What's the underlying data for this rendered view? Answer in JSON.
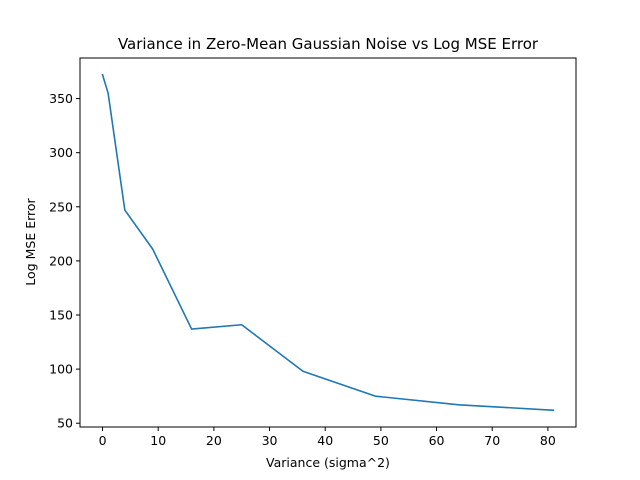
{
  "chart_data": {
    "type": "line",
    "title": "Variance in Zero-Mean Gaussian Noise vs Log MSE Error",
    "xlabel": "Variance (sigma^2)",
    "ylabel": "Log MSE Error",
    "xlim": [
      -4.05,
      85.05
    ],
    "ylim": [
      46.5,
      387.5
    ],
    "xticks": [
      0,
      10,
      20,
      30,
      40,
      50,
      60,
      70,
      80
    ],
    "yticks": [
      50,
      100,
      150,
      200,
      250,
      300,
      350
    ],
    "grid": false,
    "series": [
      {
        "color": "#1f77b4",
        "x": [
          0,
          1,
          4,
          9,
          16,
          25,
          36,
          49,
          64,
          81
        ],
        "y": [
          372,
          355,
          247,
          211,
          137,
          141,
          98,
          75,
          67,
          62
        ]
      }
    ]
  }
}
